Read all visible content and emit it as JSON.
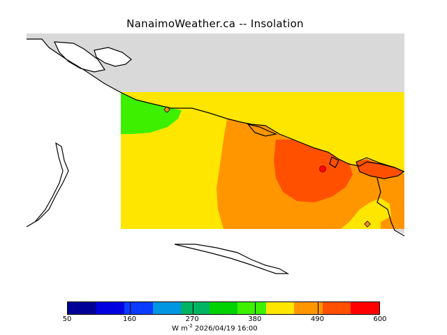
{
  "title": "NanaimoWeather.ca -- Insolation",
  "map": {
    "field": "Insolation",
    "units_prefix": "W m",
    "units_exponent": "-2",
    "valid_time": "2026/04/19 16:00",
    "colors": {
      "land": "#d9d9d9",
      "water": "#ffffff",
      "coast": "#000000"
    },
    "station_markers": [
      {
        "name": "marker-northwest",
        "color": "#ff8c00"
      },
      {
        "name": "marker-nanaimo",
        "color": "#ff0000"
      },
      {
        "name": "marker-southeast",
        "color": "#ff8c00"
      }
    ]
  },
  "colorbar": {
    "min": 50,
    "max": 600,
    "tick_labels": [
      "50",
      "160",
      "270",
      "380",
      "490",
      "600"
    ],
    "tick_values": [
      50,
      160,
      270,
      380,
      490,
      600
    ],
    "segment_colors": [
      "#000096",
      "#0000e1",
      "#0a3cff",
      "#0096e1",
      "#00b464",
      "#00d200",
      "#3cf000",
      "#ffe600",
      "#ff9600",
      "#ff5000",
      "#ff0000"
    ]
  }
}
